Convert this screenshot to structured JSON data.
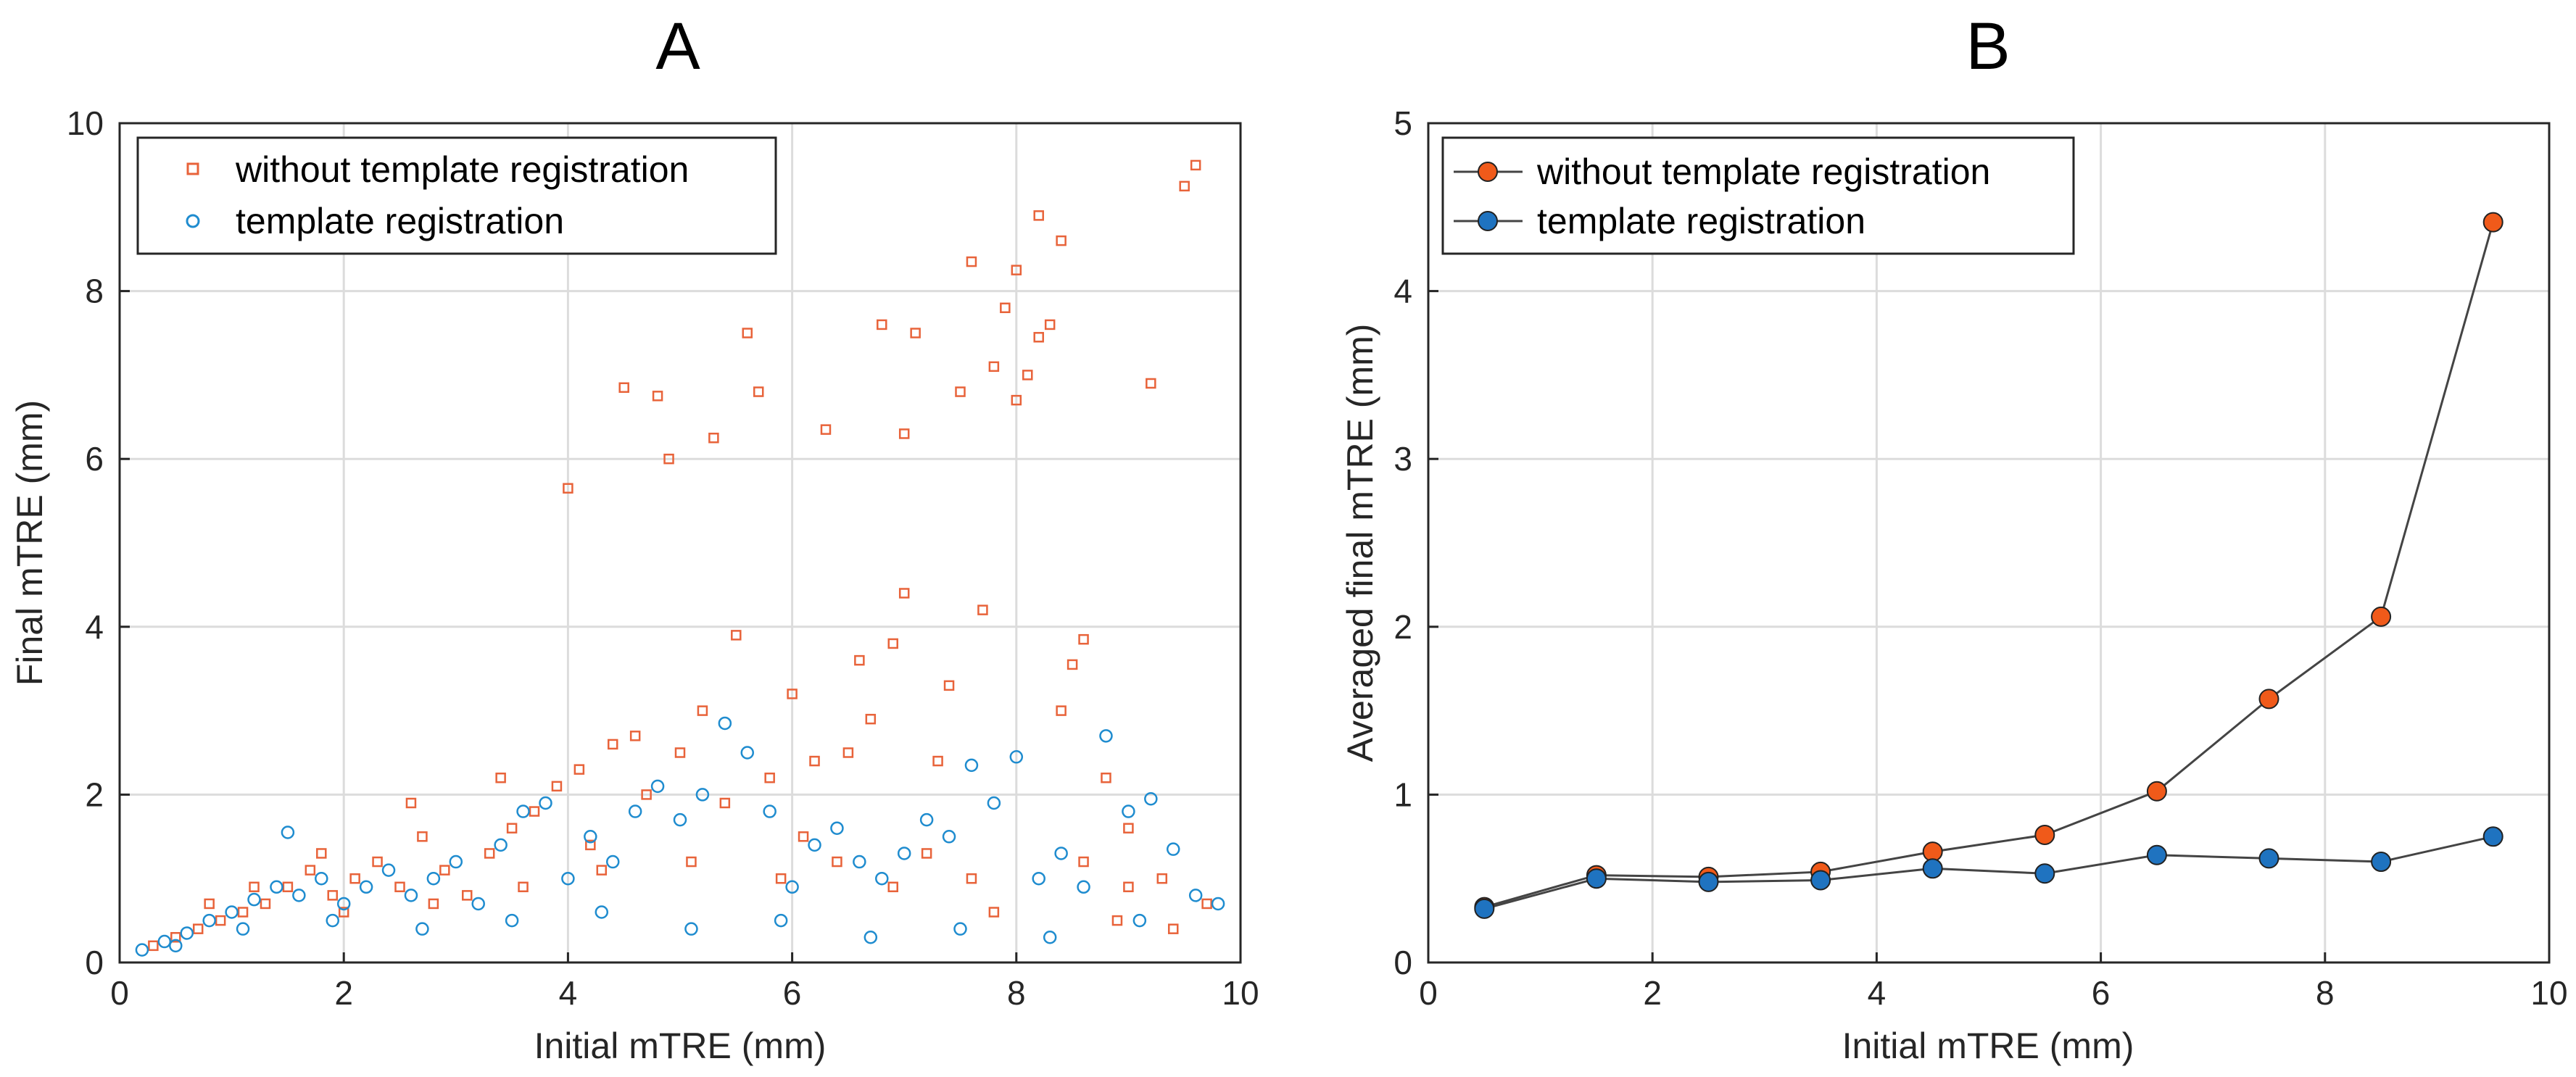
{
  "chart_data": [
    {
      "type": "scatter",
      "panel_label": "A",
      "xlabel": "Initial mTRE (mm)",
      "ylabel": "Final mTRE (mm)",
      "xlim": [
        0,
        10
      ],
      "ylim": [
        0,
        10
      ],
      "xticks": [
        "0",
        "2",
        "4",
        "6",
        "8",
        "10"
      ],
      "yticks": [
        "0",
        "2",
        "4",
        "6",
        "8",
        "10"
      ],
      "grid": true,
      "legend_position": "top-left",
      "series": [
        {
          "name": "without template registration",
          "marker": "square",
          "color": "#e8633a",
          "points": [
            [
              0.3,
              0.2
            ],
            [
              0.5,
              0.3
            ],
            [
              0.7,
              0.4
            ],
            [
              0.9,
              0.5
            ],
            [
              1.1,
              0.6
            ],
            [
              1.3,
              0.7
            ],
            [
              1.5,
              0.9
            ],
            [
              1.7,
              1.1
            ],
            [
              1.9,
              0.8
            ],
            [
              2.1,
              1.0
            ],
            [
              2.3,
              1.2
            ],
            [
              2.5,
              0.9
            ],
            [
              2.7,
              1.5
            ],
            [
              2.9,
              1.1
            ],
            [
              3.1,
              0.8
            ],
            [
              3.3,
              1.3
            ],
            [
              3.5,
              1.6
            ],
            [
              3.7,
              1.8
            ],
            [
              3.9,
              2.1
            ],
            [
              4.0,
              5.65
            ],
            [
              4.2,
              1.4
            ],
            [
              4.4,
              2.6
            ],
            [
              4.5,
              6.85
            ],
            [
              4.6,
              2.7
            ],
            [
              4.8,
              6.75
            ],
            [
              4.9,
              6.0
            ],
            [
              5.0,
              2.5
            ],
            [
              5.2,
              3.0
            ],
            [
              5.3,
              6.25
            ],
            [
              5.5,
              3.9
            ],
            [
              5.6,
              7.5
            ],
            [
              5.7,
              6.8
            ],
            [
              5.8,
              2.2
            ],
            [
              6.0,
              3.2
            ],
            [
              6.2,
              2.4
            ],
            [
              6.3,
              6.35
            ],
            [
              6.5,
              2.5
            ],
            [
              6.6,
              3.6
            ],
            [
              6.7,
              2.9
            ],
            [
              6.8,
              7.6
            ],
            [
              6.9,
              3.8
            ],
            [
              7.0,
              6.3
            ],
            [
              7.0,
              4.4
            ],
            [
              7.1,
              7.5
            ],
            [
              7.3,
              2.4
            ],
            [
              7.4,
              3.3
            ],
            [
              7.5,
              6.8
            ],
            [
              7.6,
              8.35
            ],
            [
              7.7,
              4.2
            ],
            [
              7.8,
              7.1
            ],
            [
              7.9,
              7.8
            ],
            [
              8.0,
              8.25
            ],
            [
              8.0,
              6.7
            ],
            [
              8.1,
              7.0
            ],
            [
              8.2,
              8.9
            ],
            [
              8.2,
              7.45
            ],
            [
              8.3,
              7.6
            ],
            [
              8.4,
              8.6
            ],
            [
              8.4,
              3.0
            ],
            [
              8.5,
              3.55
            ],
            [
              8.6,
              3.85
            ],
            [
              8.8,
              2.2
            ],
            [
              9.0,
              1.6
            ],
            [
              9.2,
              6.9
            ],
            [
              9.3,
              1.0
            ],
            [
              9.5,
              9.25
            ],
            [
              9.6,
              9.5
            ],
            [
              9.7,
              0.7
            ],
            [
              1.8,
              1.3
            ],
            [
              2.6,
              1.9
            ],
            [
              3.4,
              2.2
            ],
            [
              4.1,
              2.3
            ],
            [
              4.7,
              2.0
            ],
            [
              5.4,
              1.9
            ],
            [
              6.1,
              1.5
            ],
            [
              6.4,
              1.2
            ],
            [
              7.2,
              1.3
            ],
            [
              7.6,
              1.0
            ],
            [
              8.6,
              1.2
            ],
            [
              9.0,
              0.9
            ],
            [
              0.8,
              0.7
            ],
            [
              1.2,
              0.9
            ],
            [
              2.0,
              0.6
            ],
            [
              2.8,
              0.7
            ],
            [
              3.6,
              0.9
            ],
            [
              4.3,
              1.1
            ],
            [
              5.1,
              1.2
            ],
            [
              5.9,
              1.0
            ],
            [
              6.9,
              0.9
            ],
            [
              7.8,
              0.6
            ],
            [
              8.9,
              0.5
            ],
            [
              9.4,
              0.4
            ]
          ]
        },
        {
          "name": "template registration",
          "marker": "circle",
          "color": "#1f8ccf",
          "points": [
            [
              0.2,
              0.15
            ],
            [
              0.4,
              0.25
            ],
            [
              0.6,
              0.35
            ],
            [
              0.8,
              0.5
            ],
            [
              1.0,
              0.6
            ],
            [
              1.2,
              0.75
            ],
            [
              1.4,
              0.9
            ],
            [
              1.5,
              1.55
            ],
            [
              1.6,
              0.8
            ],
            [
              1.8,
              1.0
            ],
            [
              2.0,
              0.7
            ],
            [
              2.2,
              0.9
            ],
            [
              2.4,
              1.1
            ],
            [
              2.6,
              0.8
            ],
            [
              2.8,
              1.0
            ],
            [
              3.0,
              1.2
            ],
            [
              3.2,
              0.7
            ],
            [
              3.4,
              1.4
            ],
            [
              3.6,
              1.8
            ],
            [
              3.8,
              1.9
            ],
            [
              4.0,
              1.0
            ],
            [
              4.2,
              1.5
            ],
            [
              4.4,
              1.2
            ],
            [
              4.6,
              1.8
            ],
            [
              4.8,
              2.1
            ],
            [
              5.0,
              1.7
            ],
            [
              5.2,
              2.0
            ],
            [
              5.4,
              2.85
            ],
            [
              5.6,
              2.5
            ],
            [
              5.8,
              1.8
            ],
            [
              6.0,
              0.9
            ],
            [
              6.2,
              1.4
            ],
            [
              6.4,
              1.6
            ],
            [
              6.6,
              1.2
            ],
            [
              6.8,
              1.0
            ],
            [
              7.0,
              1.3
            ],
            [
              7.2,
              1.7
            ],
            [
              7.4,
              1.5
            ],
            [
              7.6,
              2.35
            ],
            [
              7.8,
              1.9
            ],
            [
              8.0,
              2.45
            ],
            [
              8.2,
              1.0
            ],
            [
              8.4,
              1.3
            ],
            [
              8.6,
              0.9
            ],
            [
              8.8,
              2.7
            ],
            [
              9.0,
              1.8
            ],
            [
              9.2,
              1.95
            ],
            [
              9.4,
              1.35
            ],
            [
              9.6,
              0.8
            ],
            [
              9.8,
              0.7
            ],
            [
              0.5,
              0.2
            ],
            [
              1.1,
              0.4
            ],
            [
              1.9,
              0.5
            ],
            [
              2.7,
              0.4
            ],
            [
              3.5,
              0.5
            ],
            [
              4.3,
              0.6
            ],
            [
              5.1,
              0.4
            ],
            [
              5.9,
              0.5
            ],
            [
              6.7,
              0.3
            ],
            [
              7.5,
              0.4
            ],
            [
              8.3,
              0.3
            ],
            [
              9.1,
              0.5
            ]
          ]
        }
      ]
    },
    {
      "type": "line",
      "panel_label": "B",
      "xlabel": "Initial mTRE (mm)",
      "ylabel": "Averaged final mTRE (mm)",
      "xlim": [
        0,
        10
      ],
      "ylim": [
        0,
        5
      ],
      "xticks": [
        "0",
        "2",
        "4",
        "6",
        "8",
        "10"
      ],
      "yticks": [
        "0",
        "1",
        "2",
        "3",
        "4",
        "5"
      ],
      "grid": true,
      "legend_position": "top-left",
      "x": [
        0.5,
        1.5,
        2.5,
        3.5,
        4.5,
        5.5,
        6.5,
        7.5,
        8.5,
        9.5
      ],
      "series": [
        {
          "name": "without template registration",
          "color": "#f05a1a",
          "values": [
            0.33,
            0.52,
            0.51,
            0.54,
            0.66,
            0.76,
            1.02,
            1.57,
            2.06,
            4.41
          ]
        },
        {
          "name": "template registration",
          "color": "#1f73c0",
          "values": [
            0.32,
            0.5,
            0.48,
            0.49,
            0.56,
            0.53,
            0.64,
            0.62,
            0.6,
            0.75
          ]
        }
      ]
    }
  ]
}
